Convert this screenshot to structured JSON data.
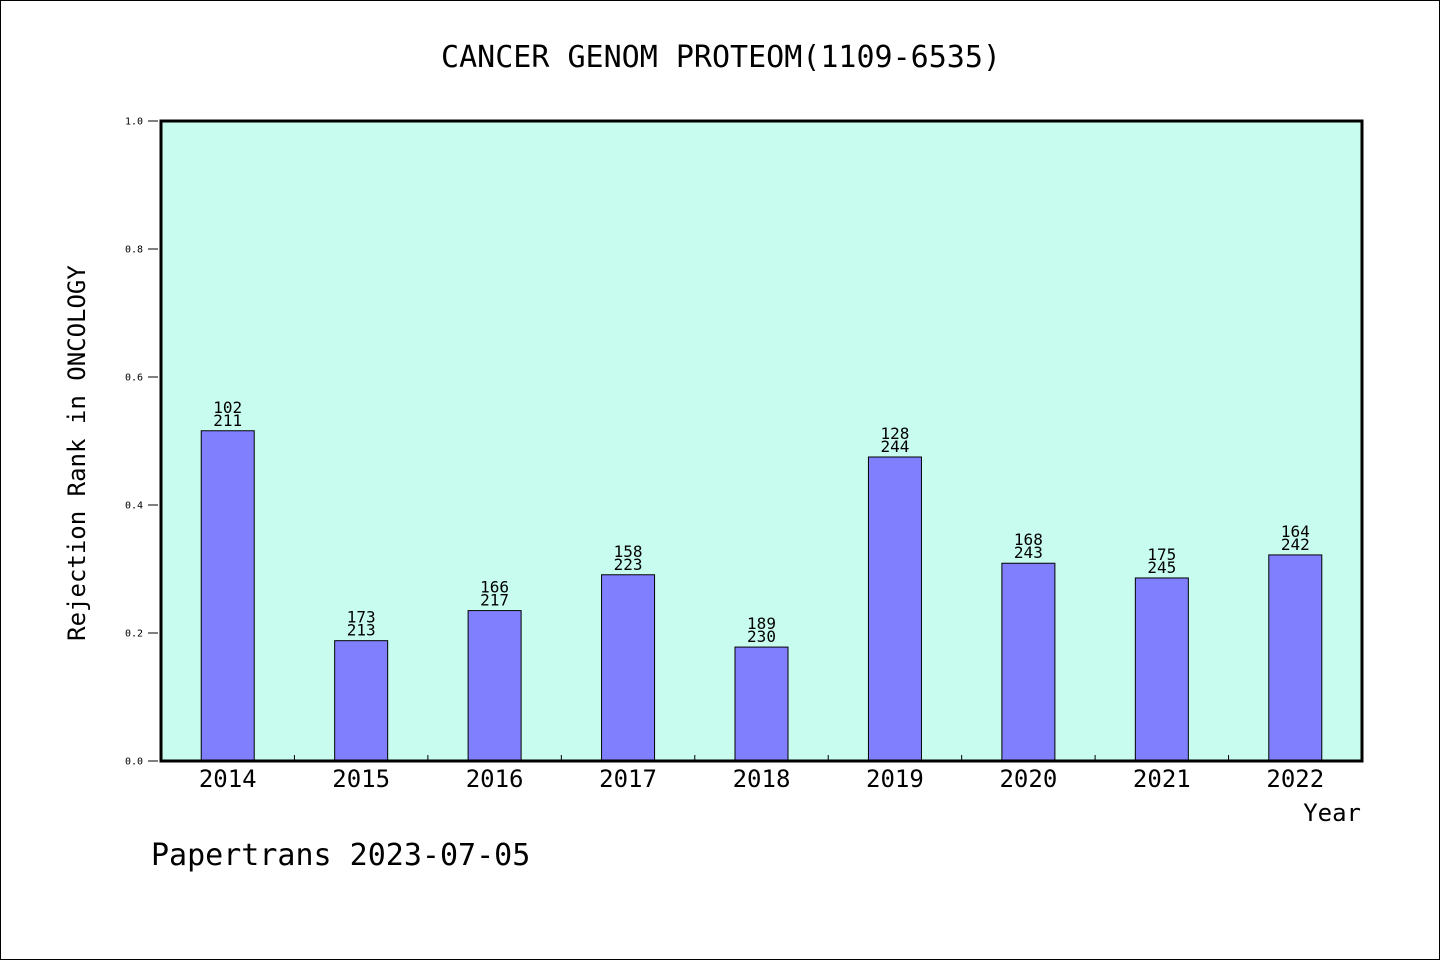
{
  "chart_data": {
    "type": "bar",
    "title": "CANCER GENOM PROTEOM(1109-6535)",
    "xlabel": "Year",
    "ylabel": "Rejection Rank in ONCOLOGY",
    "ylim": [
      0,
      1.0
    ],
    "yticks": [
      "0.0",
      "0.2",
      "0.4",
      "0.6",
      "0.8",
      "1.0"
    ],
    "categories": [
      "2014",
      "2015",
      "2016",
      "2017",
      "2018",
      "2019",
      "2020",
      "2021",
      "2022"
    ],
    "values": [
      0.516,
      0.188,
      0.235,
      0.291,
      0.178,
      0.475,
      0.309,
      0.286,
      0.322
    ],
    "labels_top": [
      "102",
      "173",
      "166",
      "158",
      "189",
      "128",
      "168",
      "175",
      "164"
    ],
    "labels_bottom": [
      "211",
      "213",
      "217",
      "223",
      "230",
      "244",
      "243",
      "245",
      "242"
    ],
    "plot_background": "#c8fcee",
    "bar_color": "#8080ff",
    "grid": false
  },
  "footer": "Papertrans 2023-07-05"
}
